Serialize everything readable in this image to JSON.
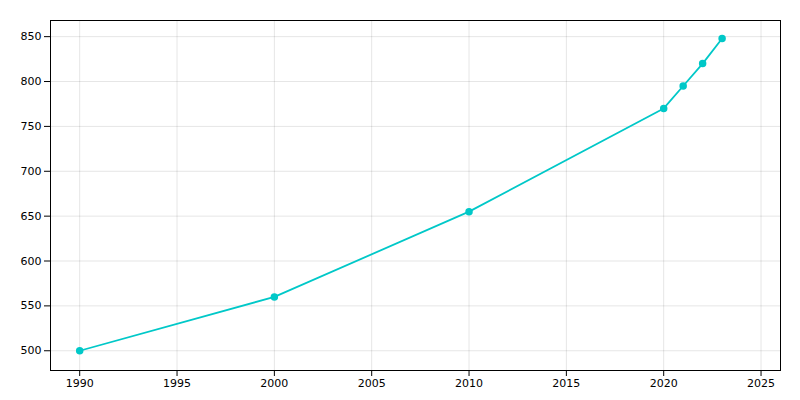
{
  "chart_data": {
    "type": "line",
    "x": [
      1990,
      2000,
      2010,
      2020,
      2021,
      2022,
      2023
    ],
    "values": [
      500,
      560,
      655,
      770,
      795,
      820,
      848
    ],
    "color": "#00C8C8",
    "marker": "circle",
    "xlim": [
      1988.5,
      2026
    ],
    "ylim": [
      478,
      868
    ],
    "xticks": [
      1990,
      1995,
      2000,
      2005,
      2010,
      2015,
      2020,
      2025
    ],
    "yticks": [
      500,
      550,
      600,
      650,
      700,
      750,
      800,
      850
    ],
    "grid": true
  }
}
